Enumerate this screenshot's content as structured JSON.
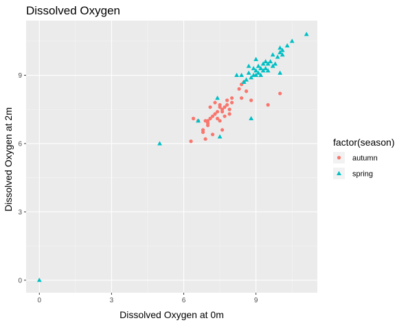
{
  "chart_data": {
    "type": "scatter",
    "title": "Dissolved Oxygen",
    "xlabel": "Dissolved Oxygen at 0m",
    "ylabel": "Dissolved Oxygen at 2m",
    "xlim": [
      -0.55,
      11.55
    ],
    "ylim": [
      -0.55,
      11.4
    ],
    "xticks": [
      0,
      3,
      6,
      9
    ],
    "yticks": [
      0,
      3,
      6,
      9
    ],
    "grid": true,
    "legend_title": "factor(season)",
    "legend_position": "right",
    "series": [
      {
        "name": "autumn",
        "color": "#F8766D",
        "marker": "circle",
        "points": [
          [
            6.3,
            6.1
          ],
          [
            6.4,
            7.1
          ],
          [
            6.6,
            7.0
          ],
          [
            6.8,
            6.6
          ],
          [
            6.8,
            6.5
          ],
          [
            6.9,
            6.2
          ],
          [
            6.9,
            7.0
          ],
          [
            7.0,
            6.8
          ],
          [
            7.0,
            6.9
          ],
          [
            7.0,
            7.0
          ],
          [
            7.1,
            7.1
          ],
          [
            7.1,
            7.6
          ],
          [
            7.2,
            7.2
          ],
          [
            7.2,
            6.4
          ],
          [
            7.3,
            7.3
          ],
          [
            7.3,
            7.8
          ],
          [
            7.4,
            7.1
          ],
          [
            7.4,
            7.4
          ],
          [
            7.5,
            7.0
          ],
          [
            7.5,
            7.7
          ],
          [
            7.5,
            7.6
          ],
          [
            7.6,
            7.5
          ],
          [
            7.6,
            7.4
          ],
          [
            7.6,
            6.6
          ],
          [
            7.7,
            7.2
          ],
          [
            7.7,
            7.6
          ],
          [
            7.8,
            7.9
          ],
          [
            7.8,
            7.7
          ],
          [
            7.9,
            7.5
          ],
          [
            7.9,
            7.3
          ],
          [
            8.0,
            8.0
          ],
          [
            8.0,
            7.8
          ],
          [
            8.3,
            8.4
          ],
          [
            8.4,
            8.0
          ],
          [
            8.4,
            8.6
          ],
          [
            8.5,
            8.7
          ],
          [
            8.6,
            8.3
          ],
          [
            8.8,
            7.9
          ],
          [
            9.5,
            7.7
          ],
          [
            10.0,
            8.2
          ]
        ]
      },
      {
        "name": "spring",
        "color": "#00BFC4",
        "marker": "triangle",
        "points": [
          [
            0.0,
            0.0
          ],
          [
            5.0,
            6.0
          ],
          [
            6.6,
            7.0
          ],
          [
            7.4,
            8.0
          ],
          [
            7.5,
            6.3
          ],
          [
            8.2,
            9.0
          ],
          [
            8.4,
            9.0
          ],
          [
            8.5,
            8.7
          ],
          [
            8.6,
            8.8
          ],
          [
            8.7,
            9.1
          ],
          [
            8.7,
            9.4
          ],
          [
            8.8,
            7.1
          ],
          [
            8.8,
            8.9
          ],
          [
            8.9,
            9.0
          ],
          [
            8.9,
            9.3
          ],
          [
            9.0,
            9.0
          ],
          [
            9.0,
            9.2
          ],
          [
            9.0,
            9.7
          ],
          [
            9.1,
            9.1
          ],
          [
            9.1,
            9.4
          ],
          [
            9.2,
            9.3
          ],
          [
            9.2,
            9.0
          ],
          [
            9.3,
            9.2
          ],
          [
            9.3,
            9.5
          ],
          [
            9.4,
            9.6
          ],
          [
            9.4,
            9.3
          ],
          [
            9.5,
            9.5
          ],
          [
            9.5,
            9.2
          ],
          [
            9.6,
            9.6
          ],
          [
            9.7,
            9.4
          ],
          [
            9.7,
            9.9
          ],
          [
            9.8,
            9.5
          ],
          [
            9.9,
            9.8
          ],
          [
            10.0,
            10.0
          ],
          [
            10.0,
            9.1
          ],
          [
            10.0,
            10.2
          ],
          [
            10.1,
            10.1
          ],
          [
            10.1,
            9.9
          ],
          [
            10.3,
            10.3
          ],
          [
            10.5,
            10.5
          ],
          [
            11.1,
            10.8
          ]
        ]
      }
    ]
  }
}
